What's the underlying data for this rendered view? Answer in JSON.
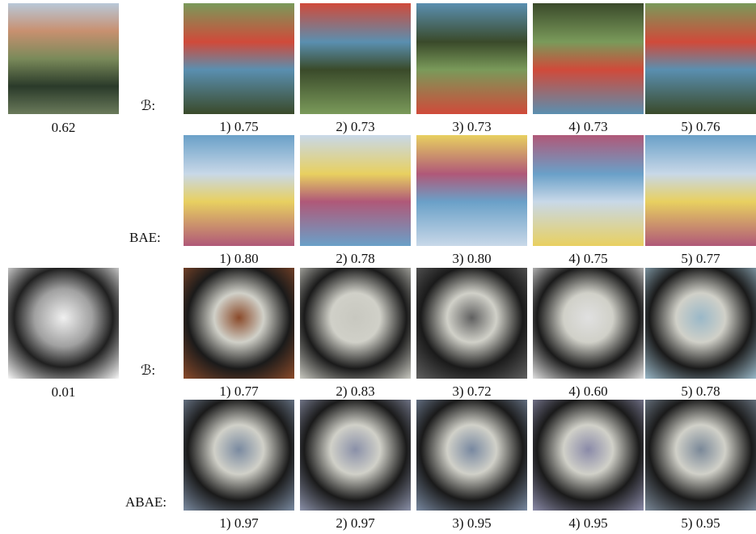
{
  "groups": [
    {
      "source_score": "0.62",
      "rows": [
        {
          "label": "ℬ:",
          "captions": [
            "1) 0.75",
            "2) 0.73",
            "3) 0.73",
            "4) 0.73",
            "5) 0.76"
          ]
        },
        {
          "label": "BAE:",
          "captions": [
            "1) 0.80",
            "2) 0.78",
            "3) 0.80",
            "4) 0.75",
            "5) 0.77"
          ]
        }
      ]
    },
    {
      "source_score": "0.01",
      "rows": [
        {
          "label": "ℬ:",
          "captions": [
            "1) 0.77",
            "2) 0.83",
            "3) 0.72",
            "4) 0.60",
            "5) 0.78"
          ]
        },
        {
          "label": "ABAE:",
          "captions": [
            "1) 0.97",
            "2) 0.97",
            "3) 0.95",
            "4) 0.95",
            "5) 0.95"
          ]
        }
      ]
    }
  ]
}
